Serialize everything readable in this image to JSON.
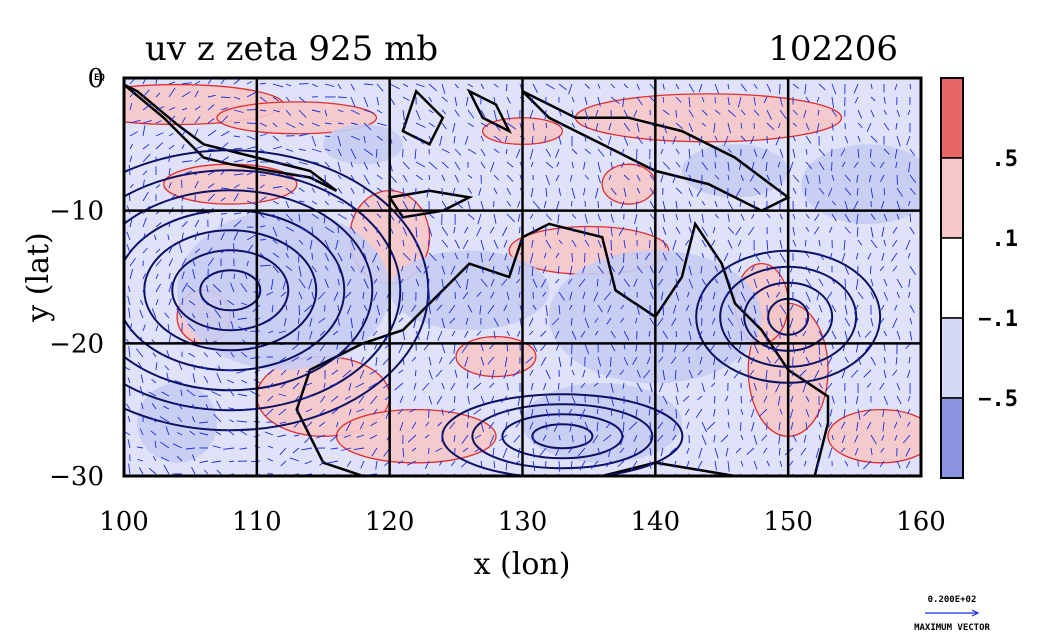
{
  "chart_data": {
    "type": "vector-contour-map",
    "title_left": "uv z zeta 925 mb",
    "title_right": "102206",
    "xlabel": "x (lon)",
    "ylabel": "y (lat)",
    "xlim": [
      100,
      160
    ],
    "ylim": [
      -30,
      0
    ],
    "x_ticks": [
      100,
      110,
      120,
      130,
      140,
      150,
      160
    ],
    "x_tick_labels": [
      "100",
      "110",
      "120",
      "130",
      "140",
      "150",
      "160"
    ],
    "y_ticks": [
      0,
      -10,
      -20,
      -30
    ],
    "y_tick_labels": [
      "0",
      "−10",
      "−20",
      "−30"
    ],
    "y_top_extra_label": "EQ",
    "grid_lon": [
      110,
      120,
      130,
      140,
      150
    ],
    "grid_lat": [
      -10,
      -20
    ],
    "colorbar": {
      "levels": [
        -0.5,
        -0.1,
        0.1,
        0.5
      ],
      "labels": [
        ".5",
        ".1",
        "−.1",
        "−.5"
      ],
      "colors": [
        "#e86666",
        "#f7c8c8",
        "#ffffff",
        "#d6d9f5",
        "#8a93e0"
      ]
    },
    "vector_legend": {
      "value": "0.200E+02",
      "caption": "MAXIMUM VECTOR"
    },
    "colors": {
      "vectors": "#1a2ee0",
      "positive_contour": "#e01b1b",
      "negative_fill": "#d6d9f5",
      "positive_fill": "#f7c8c8",
      "geopotential_contour": "#0d1160"
    }
  }
}
